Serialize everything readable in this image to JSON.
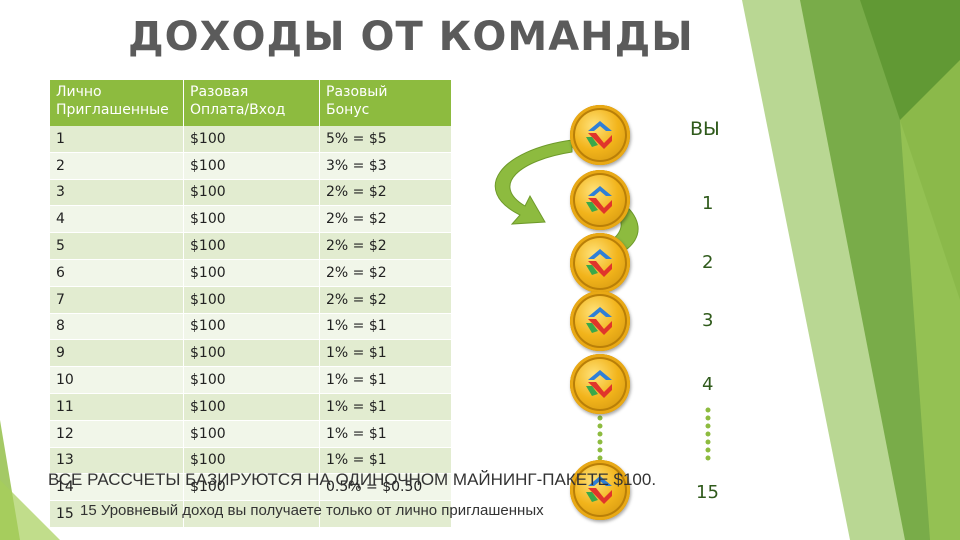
{
  "slide": {
    "title": "ДОХОДЫ ОТ КОМАНДЫ"
  },
  "table": {
    "headers": [
      "Лично\nПриглашенные",
      "Разовая\nОплата/Вход",
      "Разовый\nБонус"
    ],
    "rows": [
      [
        "1",
        "$100",
        "5% = $5"
      ],
      [
        "2",
        "$100",
        "3% = $3"
      ],
      [
        "3",
        "$100",
        "2% = $2"
      ],
      [
        "4",
        "$100",
        "2% = $2"
      ],
      [
        "5",
        "$100",
        "2% = $2"
      ],
      [
        "6",
        "$100",
        "2% = $2"
      ],
      [
        "7",
        "$100",
        "2% = $2"
      ],
      [
        "8",
        "$100",
        "1% = $1"
      ],
      [
        "9",
        "$100",
        "1% = $1"
      ],
      [
        "10",
        "$100",
        "1% = $1"
      ],
      [
        "11",
        "$100",
        "1% = $1"
      ],
      [
        "12",
        "$100",
        "1% = $1"
      ],
      [
        "13",
        "$100",
        "1% = $1"
      ],
      [
        "14",
        "$100",
        "0.5% = $0.50"
      ],
      [
        "15",
        "",
        ""
      ]
    ]
  },
  "levels": [
    "ВЫ",
    "1",
    "2",
    "3",
    "4",
    "15"
  ],
  "notes": {
    "line1": "ВСЕ РАССЧЕТЫ БАЗИРУЮТСЯ НА ОДИНОЧНОМ МАЙНИНГ-ПАКЕТЕ $100.",
    "line2": "15 Уровневый доход вы получаете только от лично приглашенных"
  },
  "colors": {
    "accent": "#8dbb3f",
    "row_dark": "#e2ecd0",
    "row_light": "#f1f6e9",
    "coin": "#f2b41b"
  },
  "icons": [
    "curved-arrow-icon",
    "coin-logo-icon",
    "dotted-connector-icon"
  ]
}
